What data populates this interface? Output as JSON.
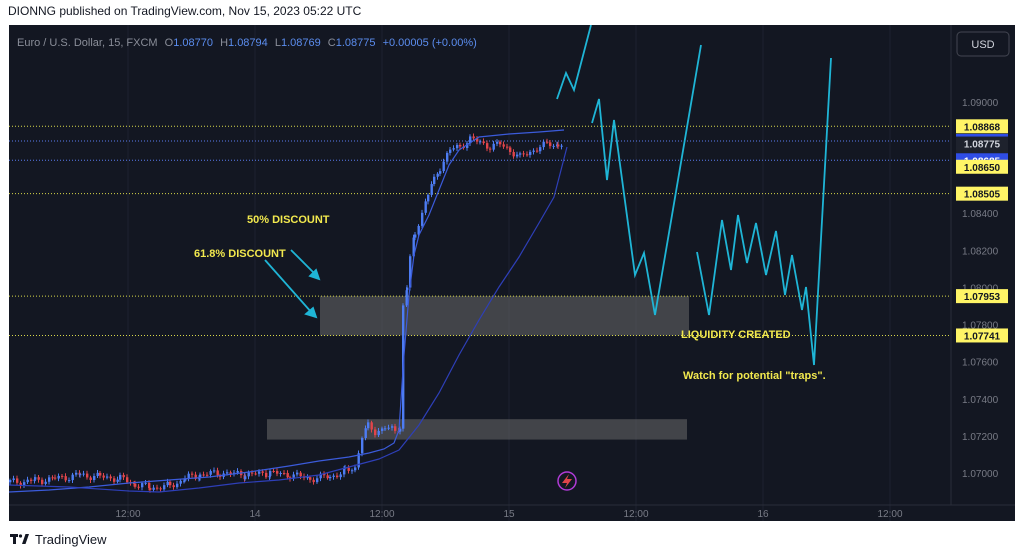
{
  "header": {
    "published": "DIONNG published on TradingView.com, Nov 15, 2023 05:22 UTC"
  },
  "footer": {
    "brand": "TradingView"
  },
  "chart_data": {
    "type": "candlestick",
    "symbol": "Euro / U.S. Dollar, 15, FXCM",
    "ohlc": {
      "o_label": "O",
      "o": "1.08770",
      "h_label": "H",
      "h": "1.08794",
      "l_label": "L",
      "l": "1.08769",
      "c_label": "C",
      "c": "1.08775",
      "change": "+0.00005 (+0.00%)"
    },
    "currency": "USD",
    "y_ticks": [
      "1.09000",
      "1.08400",
      "1.08200",
      "1.08000",
      "1.07800",
      "1.07600",
      "1.07400",
      "1.07200",
      "1.07000"
    ],
    "x_ticks": [
      "12:00",
      "14",
      "12:00",
      "15",
      "12:00",
      "16",
      "12:00"
    ],
    "ylim": [
      1.0688,
      1.0918
    ],
    "price_labels": [
      {
        "value": "1.08868",
        "style": "yellow"
      },
      {
        "value": "1.08789",
        "style": "blue"
      },
      {
        "value": "1.08775",
        "style": "dark"
      },
      {
        "value": "07:20",
        "style": "dark-sub"
      },
      {
        "value": "1.08685",
        "style": "blue"
      },
      {
        "value": "1.08650",
        "style": "yellow"
      },
      {
        "value": "1.08505",
        "style": "yellow"
      },
      {
        "value": "1.07953",
        "style": "yellow"
      },
      {
        "value": "1.07741",
        "style": "yellow"
      }
    ],
    "horizontal_levels": [
      1.08868,
      1.08789,
      1.08685,
      1.08505,
      1.07953,
      1.07741
    ],
    "zones": [
      {
        "name": "discount-zone",
        "from": 1.07741,
        "to": 1.07953
      },
      {
        "name": "lower-zone",
        "from": 1.0718,
        "to": 1.0729
      }
    ],
    "annotations": {
      "fifty": "50% DISCOUNT",
      "sixtyone": "61.8% DISCOUNT",
      "liquidity": "LIQUIDITY CREATED",
      "traps": "Watch for potential \"traps\"."
    },
    "colors": {
      "background": "#131722",
      "up": "#4d7cf3",
      "down": "#e0454a",
      "ma_fast": "#3b5bdb",
      "ma_slow": "#2e3fb8",
      "projection": "#1fb5d6",
      "level": "#d8d84a",
      "label_yellow": "#fff566",
      "label_blue": "#2f4de6",
      "text_yellow": "#f2e94e"
    }
  }
}
